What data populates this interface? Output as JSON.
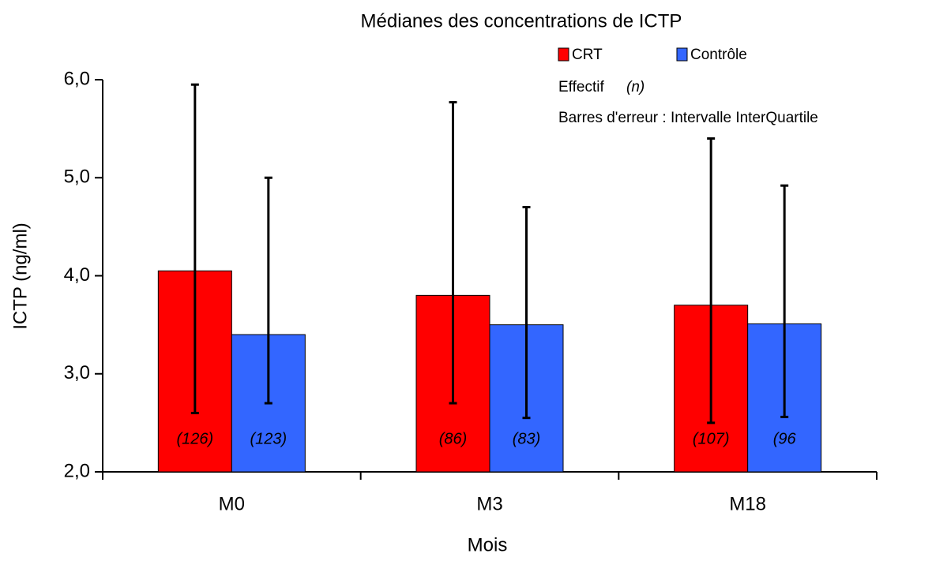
{
  "chart_data": {
    "type": "bar",
    "title": "Médianes des concentrations de ICTP",
    "x_label": "Mois",
    "y_label": "ICTP (ng/ml)",
    "annotations": [
      "Effectif",
      "(n)",
      "Barres d'erreur : Intervalle InterQuartile"
    ],
    "categories": [
      "M0",
      "M3",
      "M18"
    ],
    "series": [
      {
        "name": "CRT",
        "color": "#ff0000",
        "values": [
          4.05,
          3.8,
          3.7
        ],
        "q1": [
          2.6,
          2.7,
          2.5
        ],
        "q3": [
          5.95,
          5.77,
          5.4
        ],
        "n_labels": [
          "(126)",
          "(86)",
          "(107)"
        ]
      },
      {
        "name": "Contrôle",
        "color": "#3366ff",
        "values": [
          3.4,
          3.5,
          3.51
        ],
        "q1": [
          2.7,
          2.55,
          2.56
        ],
        "q3": [
          5.0,
          4.7,
          4.92
        ],
        "n_labels": [
          "(123)",
          "(83)",
          "(96"
        ]
      }
    ],
    "ylim": [
      2,
      6
    ],
    "yticks": [
      {
        "value": 2,
        "label": "2,0"
      },
      {
        "value": 3,
        "label": "3,0"
      },
      {
        "value": 4,
        "label": "4,0"
      },
      {
        "value": 5,
        "label": "5,0"
      },
      {
        "value": 6,
        "label": "6,0"
      }
    ],
    "grid": false
  }
}
